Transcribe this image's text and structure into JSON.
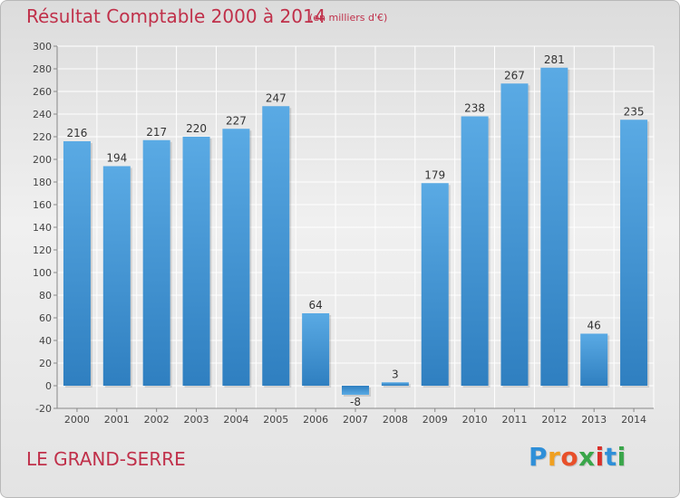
{
  "title": "Résultat Comptable 2000 à 2014",
  "subtitle": "(en milliers d'€)",
  "commune": "LE GRAND-SERRE",
  "logo": {
    "letters": [
      "P",
      "r",
      "o",
      "x",
      "i",
      "t",
      "i"
    ],
    "colors": [
      "#2f8fd8",
      "#f0a020",
      "#e8502a",
      "#3aa64a",
      "#d9302a",
      "#2f8fd8",
      "#3aa64a"
    ]
  },
  "colors": {
    "bar": "#4f9fdb",
    "bar_dark": "#2f78b8",
    "title": "#c0304a",
    "grid": "#ffffff",
    "axis_text": "#444444"
  },
  "chart_data": {
    "type": "bar",
    "categories": [
      "2000",
      "2001",
      "2002",
      "2003",
      "2004",
      "2005",
      "2006",
      "2007",
      "2008",
      "2009",
      "2010",
      "2011",
      "2012",
      "2013",
      "2014"
    ],
    "values": [
      216,
      194,
      217,
      220,
      227,
      247,
      64,
      -8,
      3,
      179,
      238,
      267,
      281,
      46,
      235
    ],
    "ylim": [
      -20,
      300
    ],
    "yticks": [
      -20,
      0,
      20,
      40,
      60,
      80,
      100,
      120,
      140,
      160,
      180,
      200,
      220,
      240,
      260,
      280,
      300
    ],
    "grid": true,
    "legend": "none"
  }
}
